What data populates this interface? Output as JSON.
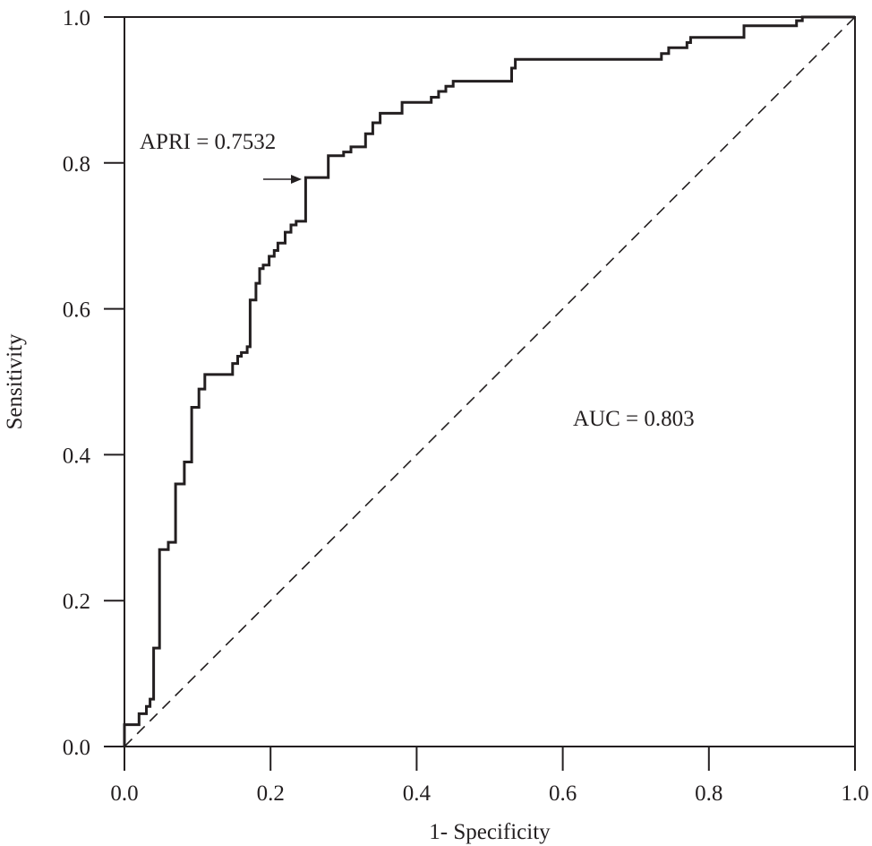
{
  "chart_data": {
    "type": "line",
    "title": "",
    "xlabel": "1- Specificity",
    "ylabel": "Sensitivity",
    "xlim": [
      0.0,
      1.0
    ],
    "ylim": [
      0.0,
      1.0
    ],
    "xticks": [
      "0.0",
      "0.2",
      "0.4",
      "0.6",
      "0.8",
      "1.0"
    ],
    "yticks": [
      "0.0",
      "0.2",
      "0.4",
      "0.6",
      "0.8",
      "1.0"
    ],
    "grid": false,
    "legend": null,
    "annotations": {
      "cutoff_label": "APRI = 0.7532",
      "cutoff_point": [
        0.248,
        0.78
      ],
      "auc_label": "AUC = 0.803"
    },
    "series": [
      {
        "name": "ROC curve (APRI)",
        "style": "solid-step",
        "points": [
          [
            0.0,
            0.0
          ],
          [
            0.0,
            0.03
          ],
          [
            0.02,
            0.03
          ],
          [
            0.02,
            0.045
          ],
          [
            0.03,
            0.045
          ],
          [
            0.03,
            0.055
          ],
          [
            0.035,
            0.055
          ],
          [
            0.035,
            0.065
          ],
          [
            0.04,
            0.065
          ],
          [
            0.04,
            0.135
          ],
          [
            0.048,
            0.135
          ],
          [
            0.048,
            0.27
          ],
          [
            0.06,
            0.27
          ],
          [
            0.06,
            0.28
          ],
          [
            0.07,
            0.28
          ],
          [
            0.07,
            0.36
          ],
          [
            0.082,
            0.36
          ],
          [
            0.082,
            0.39
          ],
          [
            0.092,
            0.39
          ],
          [
            0.092,
            0.465
          ],
          [
            0.102,
            0.465
          ],
          [
            0.102,
            0.49
          ],
          [
            0.11,
            0.49
          ],
          [
            0.11,
            0.51
          ],
          [
            0.148,
            0.51
          ],
          [
            0.148,
            0.525
          ],
          [
            0.155,
            0.525
          ],
          [
            0.155,
            0.535
          ],
          [
            0.16,
            0.535
          ],
          [
            0.16,
            0.54
          ],
          [
            0.168,
            0.54
          ],
          [
            0.168,
            0.548
          ],
          [
            0.172,
            0.548
          ],
          [
            0.172,
            0.612
          ],
          [
            0.18,
            0.612
          ],
          [
            0.18,
            0.635
          ],
          [
            0.185,
            0.635
          ],
          [
            0.185,
            0.655
          ],
          [
            0.19,
            0.655
          ],
          [
            0.19,
            0.66
          ],
          [
            0.198,
            0.66
          ],
          [
            0.198,
            0.672
          ],
          [
            0.205,
            0.672
          ],
          [
            0.205,
            0.68
          ],
          [
            0.21,
            0.68
          ],
          [
            0.21,
            0.69
          ],
          [
            0.22,
            0.69
          ],
          [
            0.22,
            0.705
          ],
          [
            0.228,
            0.705
          ],
          [
            0.228,
            0.715
          ],
          [
            0.235,
            0.715
          ],
          [
            0.235,
            0.72
          ],
          [
            0.248,
            0.72
          ],
          [
            0.248,
            0.78
          ],
          [
            0.279,
            0.78
          ],
          [
            0.279,
            0.81
          ],
          [
            0.3,
            0.81
          ],
          [
            0.3,
            0.815
          ],
          [
            0.31,
            0.815
          ],
          [
            0.31,
            0.822
          ],
          [
            0.33,
            0.822
          ],
          [
            0.33,
            0.84
          ],
          [
            0.34,
            0.84
          ],
          [
            0.34,
            0.855
          ],
          [
            0.35,
            0.855
          ],
          [
            0.35,
            0.868
          ],
          [
            0.38,
            0.868
          ],
          [
            0.38,
            0.883
          ],
          [
            0.42,
            0.883
          ],
          [
            0.42,
            0.89
          ],
          [
            0.43,
            0.89
          ],
          [
            0.43,
            0.898
          ],
          [
            0.44,
            0.898
          ],
          [
            0.44,
            0.905
          ],
          [
            0.45,
            0.905
          ],
          [
            0.45,
            0.912
          ],
          [
            0.53,
            0.912
          ],
          [
            0.53,
            0.93
          ],
          [
            0.535,
            0.93
          ],
          [
            0.535,
            0.942
          ],
          [
            0.735,
            0.942
          ],
          [
            0.735,
            0.95
          ],
          [
            0.745,
            0.95
          ],
          [
            0.745,
            0.958
          ],
          [
            0.77,
            0.958
          ],
          [
            0.77,
            0.965
          ],
          [
            0.775,
            0.965
          ],
          [
            0.775,
            0.972
          ],
          [
            0.848,
            0.972
          ],
          [
            0.848,
            0.988
          ],
          [
            0.92,
            0.988
          ],
          [
            0.92,
            0.995
          ],
          [
            0.928,
            0.995
          ],
          [
            0.928,
            1.0
          ],
          [
            1.0,
            1.0
          ]
        ]
      },
      {
        "name": "Reference line",
        "style": "dashed",
        "points": [
          [
            0.0,
            0.0
          ],
          [
            1.0,
            1.0
          ]
        ]
      }
    ]
  }
}
